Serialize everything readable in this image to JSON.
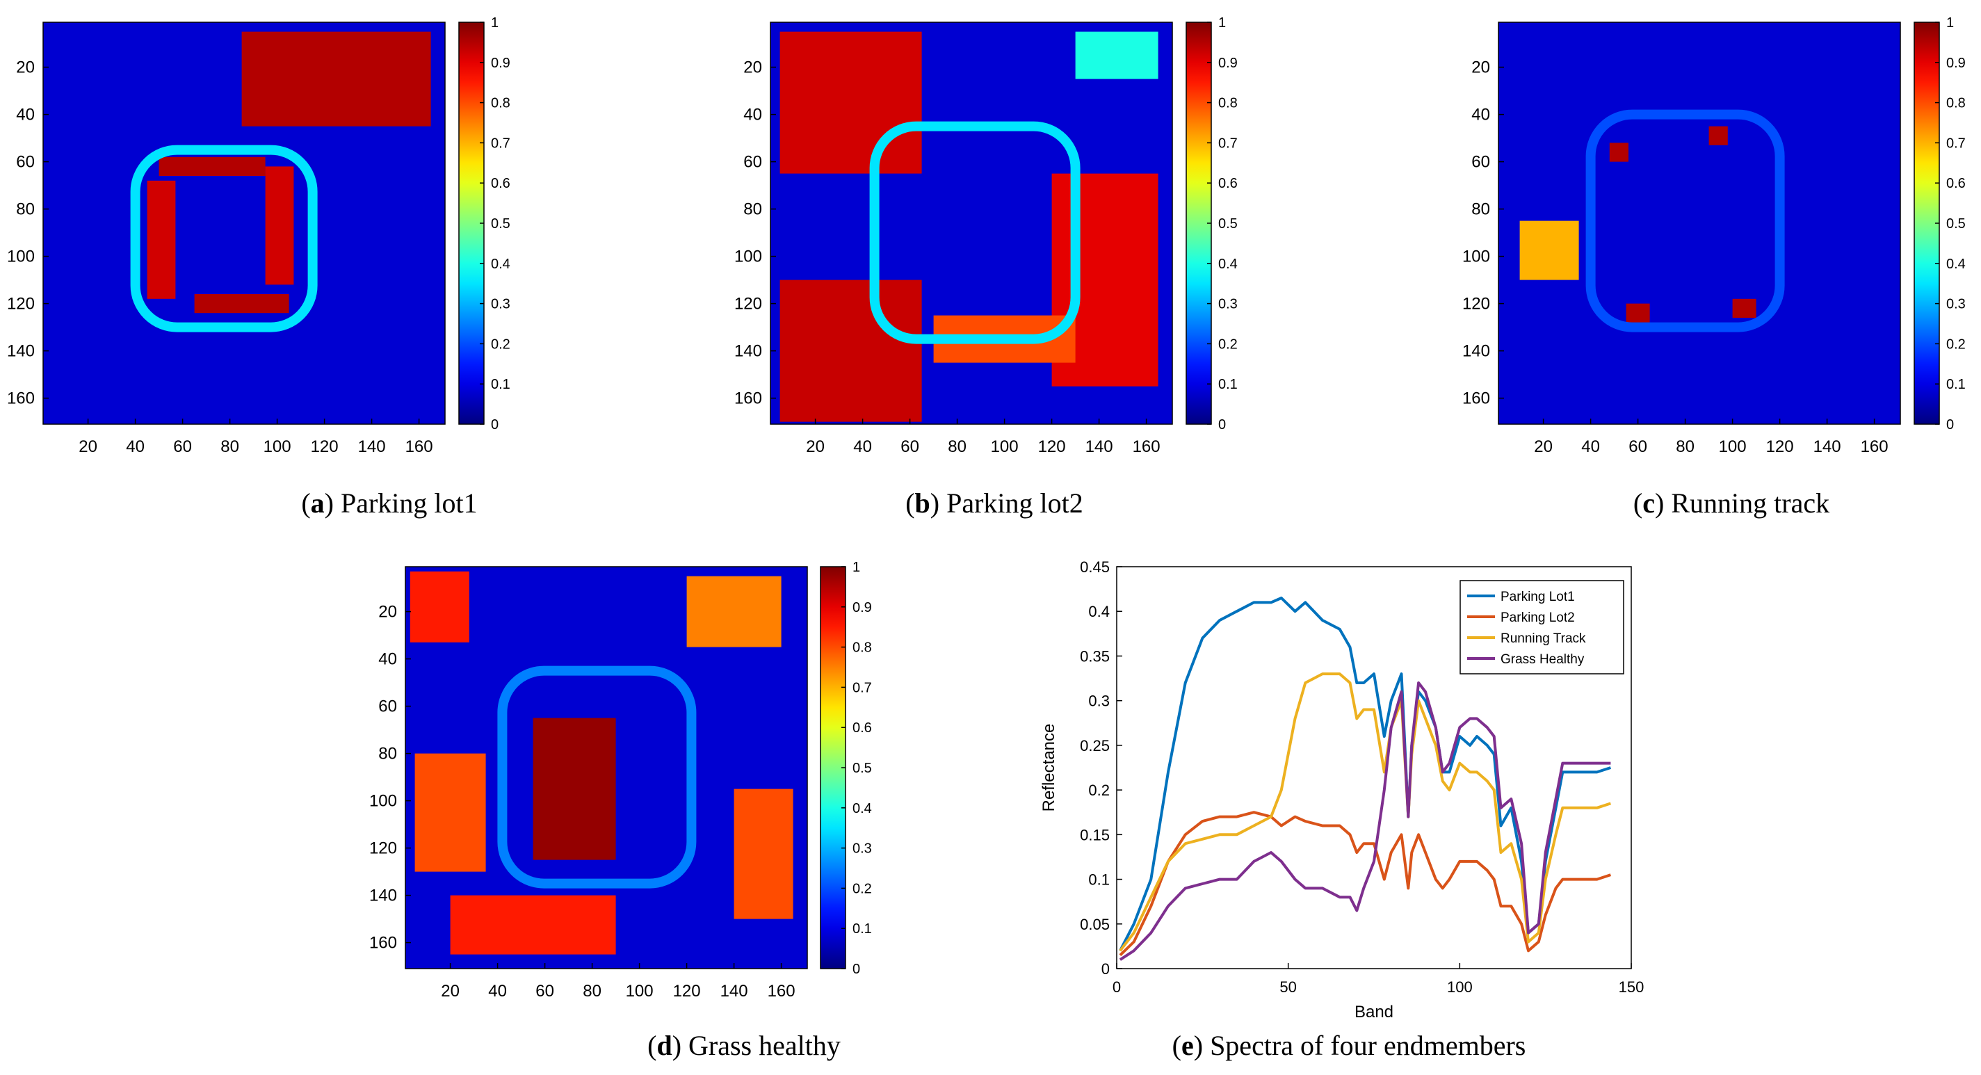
{
  "chart_data": [
    {
      "type": "heatmap",
      "panel_letter": "a",
      "caption": "Parking lot1",
      "xticks": [
        20,
        40,
        60,
        80,
        100,
        120,
        140,
        160
      ],
      "yticks": [
        20,
        40,
        60,
        80,
        100,
        120,
        140,
        160
      ],
      "xlim": [
        1,
        170
      ],
      "ylim": [
        1,
        170
      ],
      "colorbar_ticks": [
        "0",
        "0.1",
        "0.2",
        "0.3",
        "0.4",
        "0.5",
        "0.6",
        "0.7",
        "0.8",
        "0.9",
        "1"
      ],
      "clim": [
        0,
        1
      ],
      "colormap": "jet"
    },
    {
      "type": "heatmap",
      "panel_letter": "b",
      "caption": "Parking lot2",
      "xticks": [
        20,
        40,
        60,
        80,
        100,
        120,
        140,
        160
      ],
      "yticks": [
        20,
        40,
        60,
        80,
        100,
        120,
        140,
        160
      ],
      "xlim": [
        1,
        170
      ],
      "ylim": [
        1,
        170
      ],
      "colorbar_ticks": [
        "0",
        "0.1",
        "0.2",
        "0.3",
        "0.4",
        "0.5",
        "0.6",
        "0.7",
        "0.8",
        "0.9",
        "1"
      ],
      "clim": [
        0,
        1
      ],
      "colormap": "jet"
    },
    {
      "type": "heatmap",
      "panel_letter": "c",
      "caption": "Running track",
      "xticks": [
        20,
        40,
        60,
        80,
        100,
        120,
        140,
        160
      ],
      "yticks": [
        20,
        40,
        60,
        80,
        100,
        120,
        140,
        160
      ],
      "xlim": [
        1,
        170
      ],
      "ylim": [
        1,
        170
      ],
      "colorbar_ticks": [
        "0",
        "0.1",
        "0.2",
        "0.3",
        "0.4",
        "0.5",
        "0.6",
        "0.7",
        "0.8",
        "0.9",
        "1"
      ],
      "clim": [
        0,
        1
      ],
      "colormap": "jet"
    },
    {
      "type": "heatmap",
      "panel_letter": "d",
      "caption": "Grass healthy",
      "xticks": [
        20,
        40,
        60,
        80,
        100,
        120,
        140,
        160
      ],
      "yticks": [
        20,
        40,
        60,
        80,
        100,
        120,
        140,
        160
      ],
      "xlim": [
        1,
        170
      ],
      "ylim": [
        1,
        170
      ],
      "colorbar_ticks": [
        "0",
        "0.1",
        "0.2",
        "0.3",
        "0.4",
        "0.5",
        "0.6",
        "0.7",
        "0.8",
        "0.9",
        "1"
      ],
      "clim": [
        0,
        1
      ],
      "colormap": "jet"
    },
    {
      "type": "line",
      "panel_letter": "e",
      "caption": "Spectra of four endmembers",
      "xlabel": "Band",
      "ylabel": "Reflectance",
      "xlim": [
        0,
        150
      ],
      "ylim": [
        0,
        0.45
      ],
      "xticks": [
        0,
        50,
        100,
        150
      ],
      "yticks": [
        0,
        0.05,
        0.1,
        0.15,
        0.2,
        0.25,
        0.3,
        0.35,
        0.4,
        0.45
      ],
      "legend_position": "top-right",
      "x": [
        1,
        5,
        10,
        15,
        20,
        25,
        30,
        35,
        40,
        45,
        48,
        52,
        55,
        60,
        65,
        68,
        70,
        72,
        75,
        78,
        80,
        83,
        85,
        86,
        88,
        90,
        93,
        95,
        97,
        100,
        103,
        105,
        108,
        110,
        112,
        115,
        118,
        120,
        123,
        125,
        128,
        130,
        135,
        140,
        144
      ],
      "series": [
        {
          "name": "Parking Lot1",
          "color": "#0072BD",
          "values": [
            0.02,
            0.05,
            0.1,
            0.22,
            0.32,
            0.37,
            0.39,
            0.4,
            0.41,
            0.41,
            0.415,
            0.4,
            0.41,
            0.39,
            0.38,
            0.36,
            0.32,
            0.32,
            0.33,
            0.26,
            0.3,
            0.33,
            0.17,
            0.25,
            0.31,
            0.3,
            0.27,
            0.22,
            0.22,
            0.26,
            0.25,
            0.26,
            0.25,
            0.24,
            0.16,
            0.18,
            0.12,
            0.04,
            0.05,
            0.12,
            0.18,
            0.22,
            0.22,
            0.22,
            0.225
          ]
        },
        {
          "name": "Parking Lot2",
          "color": "#D95319",
          "values": [
            0.015,
            0.03,
            0.07,
            0.12,
            0.15,
            0.165,
            0.17,
            0.17,
            0.175,
            0.17,
            0.16,
            0.17,
            0.165,
            0.16,
            0.16,
            0.15,
            0.13,
            0.14,
            0.14,
            0.1,
            0.13,
            0.15,
            0.09,
            0.13,
            0.15,
            0.13,
            0.1,
            0.09,
            0.1,
            0.12,
            0.12,
            0.12,
            0.11,
            0.1,
            0.07,
            0.07,
            0.05,
            0.02,
            0.03,
            0.06,
            0.09,
            0.1,
            0.1,
            0.1,
            0.105
          ]
        },
        {
          "name": "Running Track",
          "color": "#EDB120",
          "values": [
            0.02,
            0.04,
            0.08,
            0.12,
            0.14,
            0.145,
            0.15,
            0.15,
            0.16,
            0.17,
            0.2,
            0.28,
            0.32,
            0.33,
            0.33,
            0.32,
            0.28,
            0.29,
            0.29,
            0.22,
            0.27,
            0.3,
            0.17,
            0.24,
            0.3,
            0.28,
            0.25,
            0.21,
            0.2,
            0.23,
            0.22,
            0.22,
            0.21,
            0.2,
            0.13,
            0.14,
            0.1,
            0.03,
            0.04,
            0.1,
            0.15,
            0.18,
            0.18,
            0.18,
            0.185
          ]
        },
        {
          "name": "Grass Healthy",
          "color": "#7E2F8E",
          "values": [
            0.01,
            0.02,
            0.04,
            0.07,
            0.09,
            0.095,
            0.1,
            0.1,
            0.12,
            0.13,
            0.12,
            0.1,
            0.09,
            0.09,
            0.08,
            0.08,
            0.065,
            0.09,
            0.12,
            0.2,
            0.27,
            0.31,
            0.17,
            0.25,
            0.32,
            0.31,
            0.27,
            0.22,
            0.23,
            0.27,
            0.28,
            0.28,
            0.27,
            0.26,
            0.18,
            0.19,
            0.14,
            0.04,
            0.05,
            0.13,
            0.19,
            0.23,
            0.23,
            0.23,
            0.23
          ]
        }
      ]
    }
  ]
}
